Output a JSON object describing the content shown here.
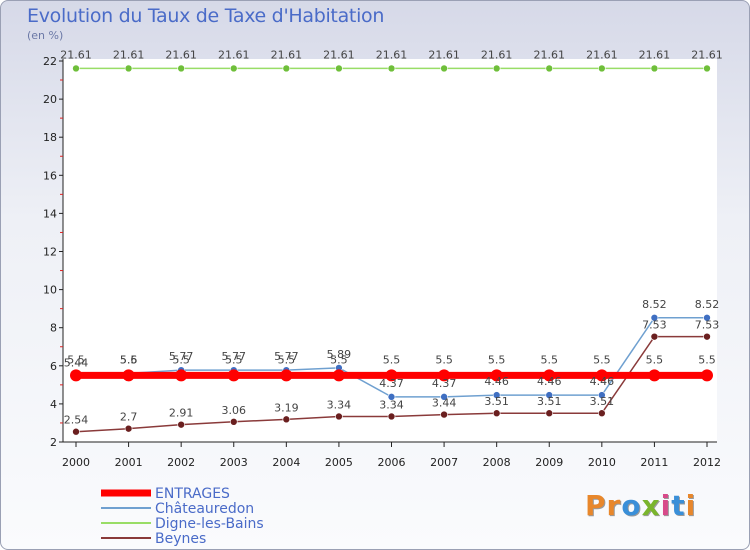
{
  "header": {
    "title": "Evolution du Taux de Taxe d'Habitation",
    "unit": "(en %)"
  },
  "logo": {
    "letters": [
      "P",
      "r",
      "o",
      "x",
      "i",
      "t",
      "i"
    ],
    "colors": [
      "#e8872b",
      "#e8872b",
      "#3a8fd8",
      "#7ab52d",
      "#d84a8a",
      "#3a8fd8",
      "#e8872b"
    ]
  },
  "chart_data": {
    "type": "line",
    "title": "Evolution du Taux de Taxe d'Habitation",
    "ylabel": "(en %)",
    "xlabel": "",
    "categories": [
      "2000",
      "2001",
      "2002",
      "2003",
      "2004",
      "2005",
      "2006",
      "2007",
      "2008",
      "2009",
      "2010",
      "2011",
      "2012"
    ],
    "ylim": [
      2,
      22
    ],
    "yticks": [
      2,
      4,
      6,
      8,
      10,
      12,
      14,
      16,
      18,
      20,
      22
    ],
    "grid": false,
    "legend_position": "bottom-left",
    "series": [
      {
        "name": "ENTRAGES",
        "color": "#ff0000",
        "style": "thick",
        "values": [
          5.5,
          5.5,
          5.5,
          5.5,
          5.5,
          5.5,
          5.5,
          5.5,
          5.5,
          5.5,
          5.5,
          5.5,
          5.5
        ],
        "labels": [
          "5.5",
          "5.5",
          "5.5",
          "5.5",
          "5.5",
          "5.5",
          "5.5",
          "5.5",
          "5.5",
          "5.5",
          "5.5",
          "5.5",
          "5.5"
        ]
      },
      {
        "name": "Châteauredon",
        "color": "#6fa0d0",
        "marker": "#3f6fc2",
        "style": "thin",
        "values": [
          5.44,
          5.6,
          5.77,
          5.77,
          5.77,
          5.89,
          4.37,
          4.37,
          4.46,
          4.46,
          4.46,
          8.52,
          8.52
        ],
        "labels": [
          "5.44",
          "5.6",
          "5.77",
          "5.77",
          "5.77",
          "5.89",
          "4.37",
          "4.37",
          "4.46",
          "4.46",
          "4.46",
          "8.52",
          "8.52"
        ]
      },
      {
        "name": "Digne-les-Bains",
        "color": "#99dd66",
        "marker": "#6fbf3a",
        "style": "thin",
        "values": [
          21.61,
          21.61,
          21.61,
          21.61,
          21.61,
          21.61,
          21.61,
          21.61,
          21.61,
          21.61,
          21.61,
          21.61,
          21.61
        ],
        "labels": [
          "21.61",
          "21.61",
          "21.61",
          "21.61",
          "21.61",
          "21.61",
          "21.61",
          "21.61",
          "21.61",
          "21.61",
          "21.61",
          "21.61",
          "21.61"
        ]
      },
      {
        "name": "Beynes",
        "color": "#8a3a3a",
        "marker": "#6a1f1f",
        "style": "thin",
        "values": [
          2.54,
          2.7,
          2.91,
          3.06,
          3.19,
          3.34,
          3.34,
          3.44,
          3.51,
          3.51,
          3.51,
          7.53,
          7.53
        ],
        "labels": [
          "2.54",
          "2.7",
          "2.91",
          "3.06",
          "3.19",
          "3.34",
          "3.34",
          "3.44",
          "3.51",
          "3.51",
          "3.51",
          "7.53",
          "7.53"
        ]
      }
    ]
  }
}
